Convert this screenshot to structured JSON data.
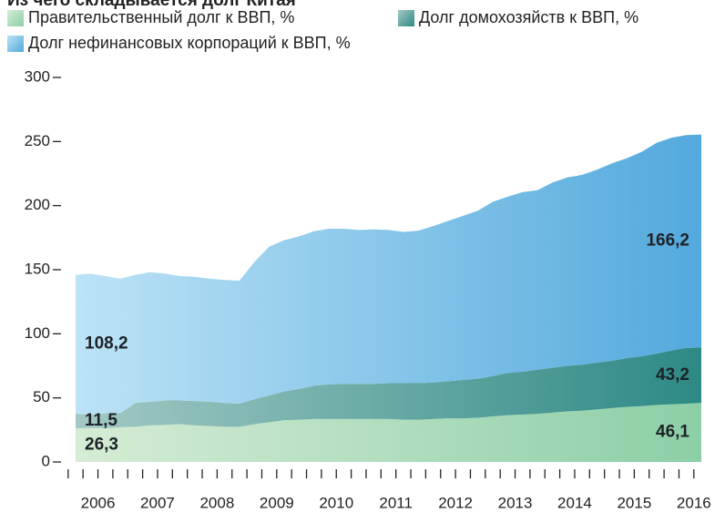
{
  "chart_data": {
    "type": "stacked_area",
    "title": "Из чего складывается долг Китая",
    "categories": [
      null,
      "2006",
      null,
      null,
      null,
      "2007",
      null,
      null,
      null,
      "2008",
      null,
      null,
      null,
      "2009",
      null,
      null,
      null,
      "2010",
      null,
      null,
      null,
      "2011",
      null,
      null,
      null,
      "2012",
      null,
      null,
      null,
      "2013",
      null,
      null,
      null,
      "2014",
      null,
      null,
      null,
      "2015",
      null,
      null,
      null,
      "2016",
      null
    ],
    "ylim": [
      0,
      300
    ],
    "yticks": [
      0,
      50,
      100,
      150,
      200,
      250,
      300
    ],
    "series": [
      {
        "name": "Правительственный долг к ВВП, %",
        "colors": [
          "#d6ecd4",
          "#8ccfa7"
        ],
        "values": [
          26.3,
          26.5,
          26.5,
          27,
          27.5,
          28.5,
          29,
          29.5,
          28.5,
          28,
          27.5,
          27.5,
          29.5,
          31,
          32.5,
          33,
          33.5,
          33.5,
          33.5,
          33.5,
          33.5,
          33.5,
          33,
          33,
          33.5,
          34,
          34,
          34.5,
          35.5,
          36.5,
          37,
          37.5,
          38.5,
          39.5,
          40,
          41,
          42,
          43,
          43.5,
          44.5,
          45,
          45.5,
          46.1
        ],
        "value_labels": [
          "26,3",
          null,
          null,
          null,
          null,
          null,
          null,
          null,
          null,
          null,
          null,
          null,
          null,
          null,
          null,
          null,
          null,
          null,
          null,
          null,
          null,
          null,
          null,
          null,
          null,
          null,
          null,
          null,
          null,
          null,
          null,
          null,
          null,
          null,
          null,
          null,
          null,
          null,
          null,
          null,
          null,
          null,
          "46,1"
        ]
      },
      {
        "name": "Долг домохозяйств к ВВП, %",
        "colors": [
          "#a3c9c4",
          "#2d8985"
        ],
        "values": [
          11.5,
          10.5,
          11.5,
          11,
          18.5,
          18.5,
          19,
          18.5,
          19,
          19,
          18.5,
          18,
          19.5,
          21,
          22.5,
          24,
          26,
          27,
          27.5,
          27.5,
          27.5,
          28,
          28.5,
          28.5,
          28.5,
          29,
          30,
          30.5,
          31.5,
          33,
          33.5,
          34.5,
          35,
          35.5,
          36,
          36.5,
          37,
          38,
          39,
          40,
          42,
          43.5,
          43.2
        ],
        "value_labels": [
          "11,5",
          null,
          null,
          null,
          null,
          null,
          null,
          null,
          null,
          null,
          null,
          null,
          null,
          null,
          null,
          null,
          null,
          null,
          null,
          null,
          null,
          null,
          null,
          null,
          null,
          null,
          null,
          null,
          null,
          null,
          null,
          null,
          null,
          null,
          null,
          null,
          null,
          null,
          null,
          null,
          null,
          null,
          "43,2"
        ]
      },
      {
        "name": "Долг нефинансовых корпораций к ВВП, %",
        "colors": [
          "#bce3f6",
          "#53a9dd"
        ],
        "values": [
          108.2,
          110,
          107,
          105,
          100,
          101,
          99,
          97,
          97,
          96,
          96,
          96,
          107,
          116,
          118,
          119,
          120.5,
          121.5,
          121,
          120,
          120.5,
          119.5,
          118,
          119,
          122,
          125,
          128,
          131,
          136,
          137.5,
          140,
          140,
          144.5,
          147,
          148,
          150.5,
          154,
          156,
          159.5,
          164.5,
          166,
          166,
          166.2
        ],
        "value_labels": [
          "108,2",
          null,
          null,
          null,
          null,
          null,
          null,
          null,
          null,
          null,
          null,
          null,
          null,
          null,
          null,
          null,
          null,
          null,
          null,
          null,
          null,
          null,
          null,
          null,
          null,
          null,
          null,
          null,
          null,
          null,
          null,
          null,
          null,
          null,
          null,
          null,
          null,
          null,
          null,
          null,
          null,
          null,
          "166,2"
        ]
      }
    ]
  }
}
